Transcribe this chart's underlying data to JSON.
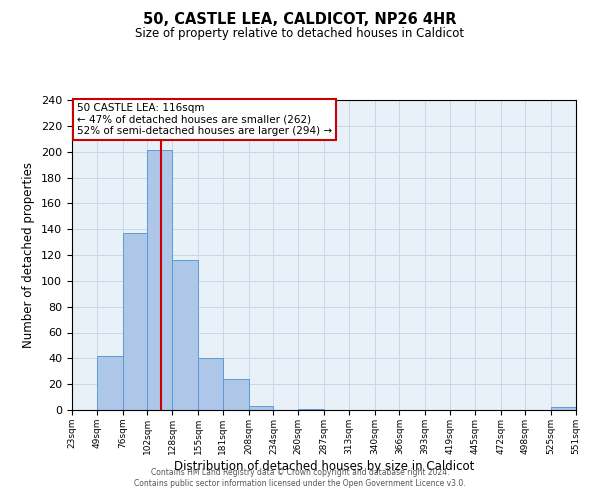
{
  "title": "50, CASTLE LEA, CALDICOT, NP26 4HR",
  "subtitle": "Size of property relative to detached houses in Caldicot",
  "xlabel": "Distribution of detached houses by size in Caldicot",
  "ylabel": "Number of detached properties",
  "bar_edges": [
    23,
    49,
    76,
    102,
    128,
    155,
    181,
    208,
    234,
    260,
    287,
    313,
    340,
    366,
    393,
    419,
    445,
    472,
    498,
    525,
    551
  ],
  "bar_heights": [
    0,
    42,
    137,
    201,
    116,
    40,
    24,
    3,
    0,
    1,
    0,
    0,
    0,
    0,
    0,
    0,
    0,
    0,
    0,
    2
  ],
  "bar_color": "#aec6e8",
  "bar_edge_color": "#5b9bd5",
  "vline_x": 116,
  "vline_color": "#cc0000",
  "ylim": [
    0,
    240
  ],
  "yticks": [
    0,
    20,
    40,
    60,
    80,
    100,
    120,
    140,
    160,
    180,
    200,
    220,
    240
  ],
  "xtick_labels": [
    "23sqm",
    "49sqm",
    "76sqm",
    "102sqm",
    "128sqm",
    "155sqm",
    "181sqm",
    "208sqm",
    "234sqm",
    "260sqm",
    "287sqm",
    "313sqm",
    "340sqm",
    "366sqm",
    "393sqm",
    "419sqm",
    "445sqm",
    "472sqm",
    "498sqm",
    "525sqm",
    "551sqm"
  ],
  "annotation_title": "50 CASTLE LEA: 116sqm",
  "annotation_line1": "← 47% of detached houses are smaller (262)",
  "annotation_line2": "52% of semi-detached houses are larger (294) →",
  "annotation_box_color": "#cc0000",
  "grid_color": "#c8d8e8",
  "background_color": "#e8f0f8",
  "footer_line1": "Contains HM Land Registry data © Crown copyright and database right 2024.",
  "footer_line2": "Contains public sector information licensed under the Open Government Licence v3.0."
}
